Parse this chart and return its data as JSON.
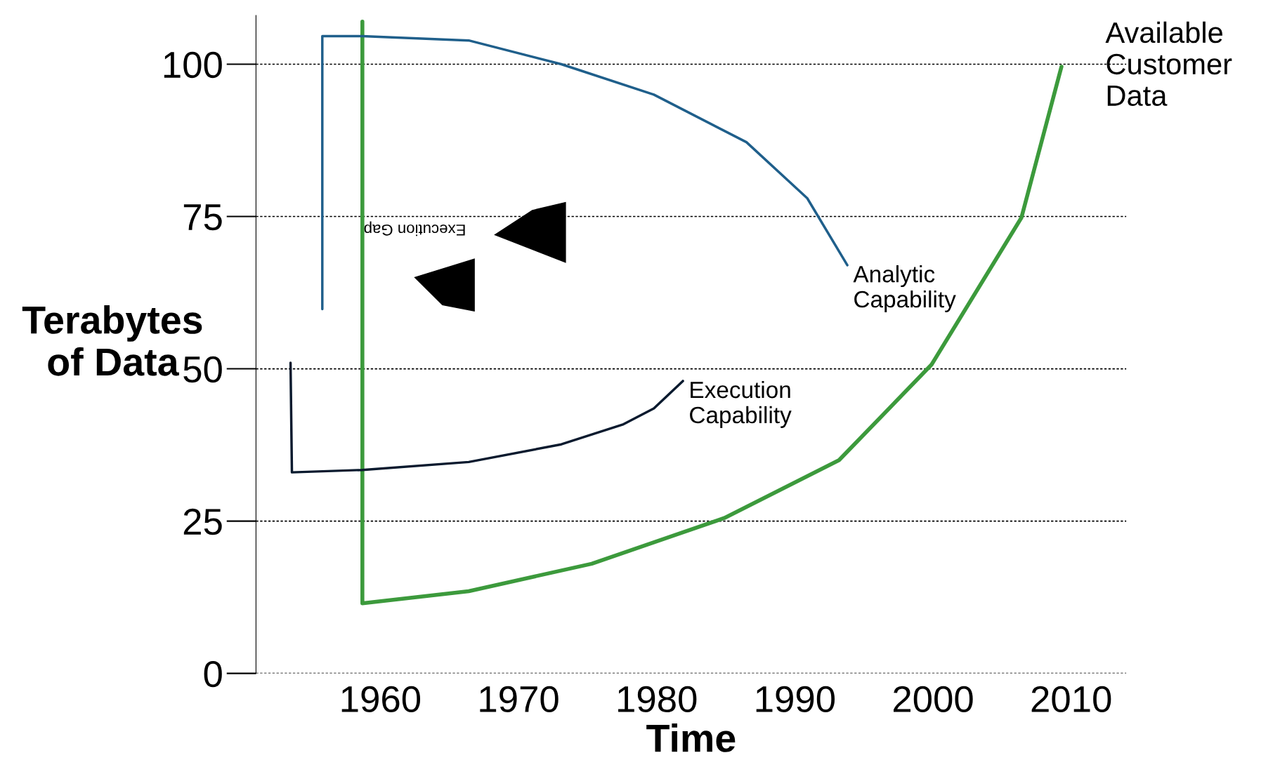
{
  "chart_data": {
    "type": "line",
    "xlabel": "Time",
    "ylabel": "Terabytes\nof Data",
    "xlim": [
      1951,
      2014
    ],
    "ylim": [
      0,
      108
    ],
    "xticks": [
      1960,
      1970,
      1980,
      1990,
      2000,
      2010
    ],
    "yticks": [
      0,
      25,
      50,
      75,
      100
    ],
    "grid": "y",
    "series": [
      {
        "name": "Available\nCustomer\nData",
        "color": "#3c9a3c",
        "x": [
          1958.7,
          1958.7,
          1966.4,
          1975.3,
          1984.9,
          1993.2,
          1999.9,
          2006.4,
          2009.3
        ],
        "values": [
          107,
          11.5,
          13.5,
          18,
          25.5,
          35,
          50.7,
          74.8,
          99.6
        ]
      },
      {
        "name": "Analytic\nCapability",
        "color": "#1f5f8b",
        "x": [
          1955.8,
          1955.8,
          1958.7,
          1966.4,
          1973.1,
          1979.8,
          1986.5,
          1990.9,
          1993.8
        ],
        "values": [
          59.8,
          104.6,
          104.6,
          103.9,
          100,
          95,
          87.2,
          78,
          67
        ]
      },
      {
        "name": "Execution\nCapability",
        "color": "#0a1a2e",
        "x": [
          1953.5,
          1953.6,
          1958.7,
          1966.4,
          1973.1,
          1977.6,
          1979.8,
          1981.9
        ],
        "values": [
          51,
          33,
          33.4,
          34.7,
          37.6,
          40.9,
          43.5,
          48
        ]
      }
    ],
    "annotations": [
      "Execution Gap"
    ]
  }
}
